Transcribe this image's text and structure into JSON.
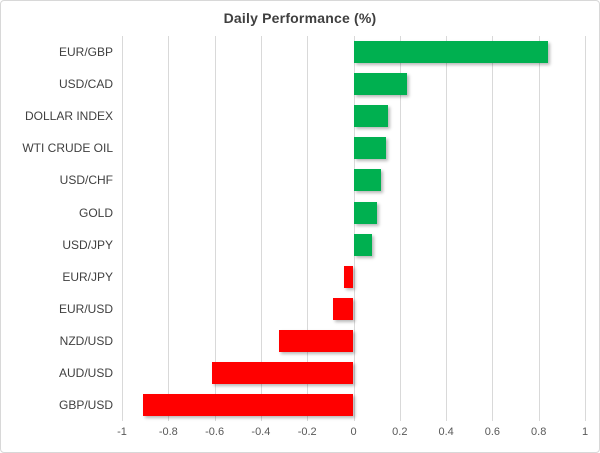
{
  "title": "Daily Performance (%)",
  "colors": {
    "positive_bar": "#00B050",
    "negative_bar": "#FF0000",
    "gridline": "#D9D9D9",
    "title_text": "#3F3F3F",
    "category_text": "#404040",
    "tick_text": "#595959",
    "frame_border": "#D8D8D8",
    "background": "#FFFFFF"
  },
  "chart_data": {
    "type": "bar",
    "orientation": "horizontal",
    "title": "Daily Performance (%)",
    "categories": [
      "EUR/GBP",
      "USD/CAD",
      "DOLLAR INDEX",
      "WTI CRUDE OIL",
      "USD/CHF",
      "GOLD",
      "USD/JPY",
      "EUR/JPY",
      "EUR/USD",
      "NZD/USD",
      "AUD/USD",
      "GBP/USD"
    ],
    "values": [
      0.84,
      0.23,
      0.15,
      0.14,
      0.12,
      0.1,
      0.08,
      -0.04,
      -0.09,
      -0.32,
      -0.61,
      -0.91
    ],
    "xlim": [
      -1,
      1
    ],
    "x_ticks": [
      -1,
      -0.8,
      -0.6,
      -0.4,
      -0.2,
      0,
      0.2,
      0.4,
      0.6,
      0.8,
      1
    ],
    "x_tick_labels": [
      "-1",
      "-0.8",
      "-0.6",
      "-0.4",
      "-0.2",
      "0",
      "0.2",
      "0.4",
      "0.6",
      "0.8",
      "1"
    ],
    "grid": "vertical-only",
    "legend": "none",
    "value_sign_colors": {
      "positive": "#00B050",
      "negative": "#FF0000"
    }
  }
}
